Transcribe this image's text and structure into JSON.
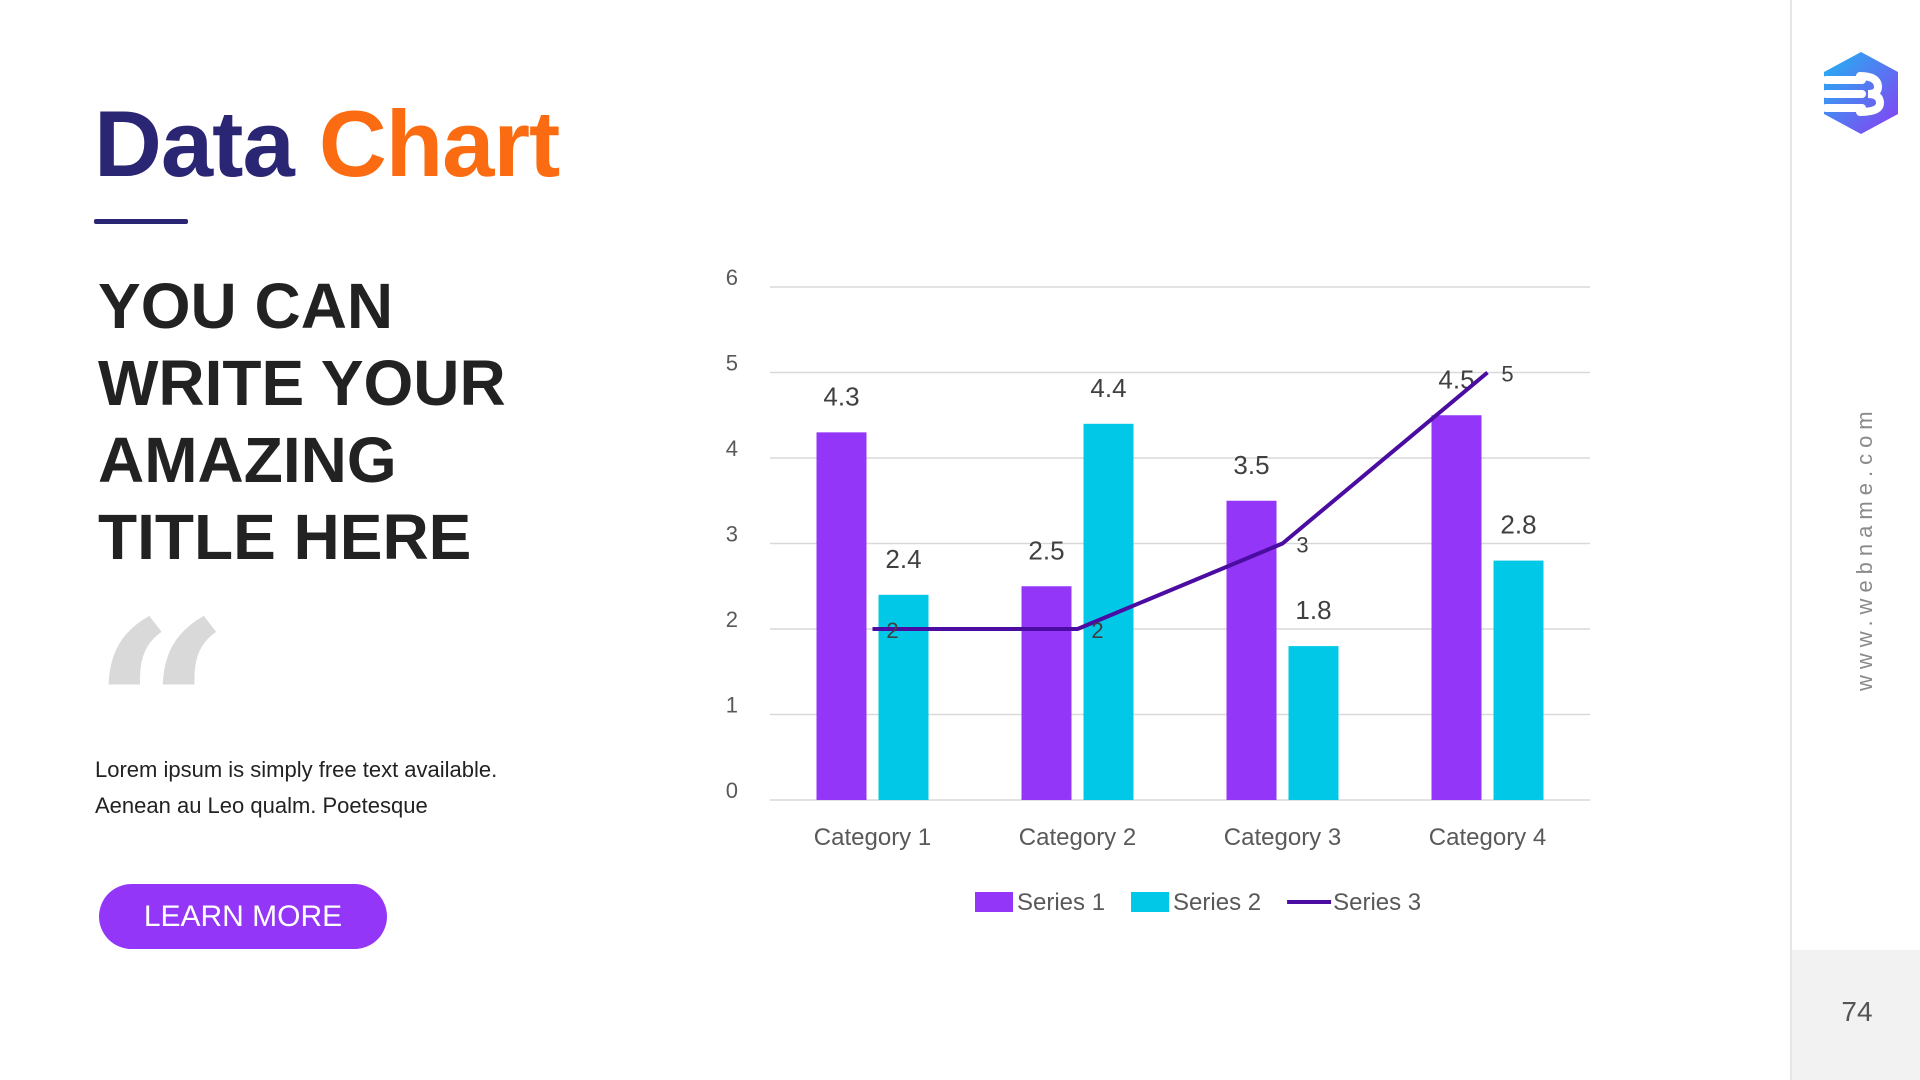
{
  "title": {
    "word1": "Data",
    "word2": "Chart"
  },
  "headline": [
    "YOU CAN",
    "WRITE YOUR",
    "AMAZING",
    "TITLE HERE"
  ],
  "quote_mark": "“",
  "body": [
    "Lorem ipsum is simply free text available.",
    "Aenean au Leo qualm. Poetesque"
  ],
  "button": {
    "label": "LEARN MORE"
  },
  "sidebar": {
    "website": "www.webname.com",
    "page_number": "74"
  },
  "colors": {
    "title_dark": "#2b2673",
    "title_accent": "#fb6c12",
    "series1": "#9436f8",
    "series2": "#00c8e6",
    "series3": "#4b0ca2"
  },
  "chart_data": {
    "type": "bar",
    "categories": [
      "Category 1",
      "Category 2",
      "Category 3",
      "Category 4"
    ],
    "series": [
      {
        "name": "Series 1",
        "type": "bar",
        "values": [
          4.3,
          2.5,
          3.5,
          4.5
        ],
        "color": "#9436f8"
      },
      {
        "name": "Series 2",
        "type": "bar",
        "values": [
          2.4,
          4.4,
          1.8,
          2.8
        ],
        "color": "#00c8e6"
      },
      {
        "name": "Series 3",
        "type": "line",
        "values": [
          2,
          2,
          3,
          5
        ],
        "color": "#4b0ca2"
      }
    ],
    "ylim": [
      0,
      6
    ],
    "yticks": [
      0,
      1,
      2,
      3,
      4,
      5,
      6
    ],
    "grid": true,
    "legend": "bottom",
    "title": "",
    "xlabel": "",
    "ylabel": ""
  }
}
